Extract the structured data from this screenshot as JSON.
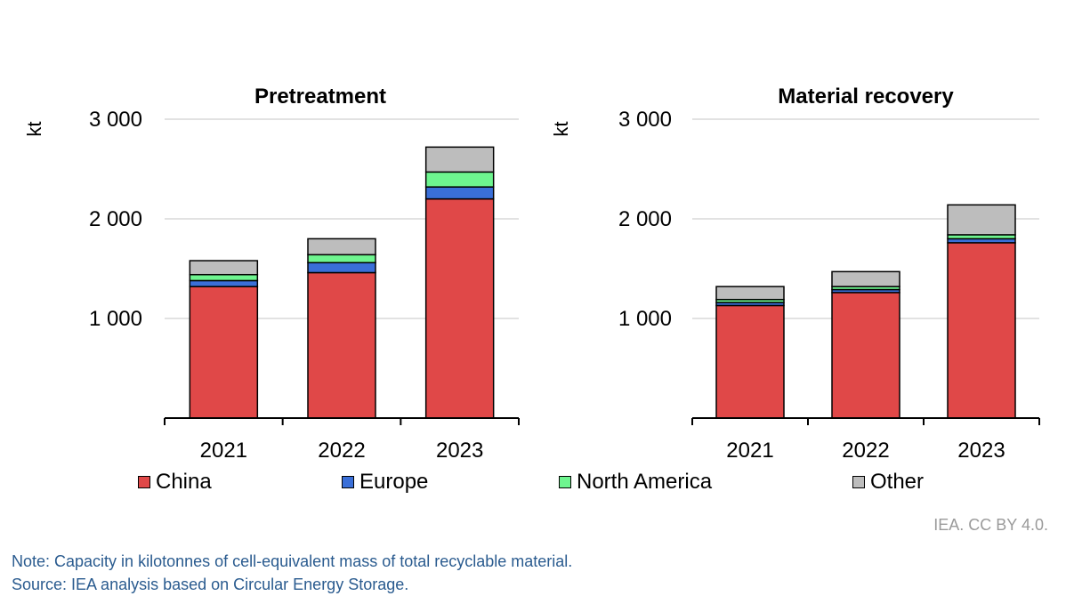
{
  "chart_data": [
    {
      "type": "bar",
      "stacked": true,
      "title": "Pretreatment",
      "ylabel": "kt",
      "ylim": [
        0,
        3000
      ],
      "yticks": [
        1000,
        2000,
        3000
      ],
      "ytick_labels": [
        "1 000",
        "2 000",
        "3 000"
      ],
      "categories": [
        "2021",
        "2022",
        "2023"
      ],
      "grid": true,
      "series": [
        {
          "name": "China",
          "values": [
            1320,
            1460,
            2200
          ]
        },
        {
          "name": "Europe",
          "values": [
            60,
            100,
            120
          ]
        },
        {
          "name": "North America",
          "values": [
            60,
            80,
            150
          ]
        },
        {
          "name": "Other",
          "values": [
            140,
            160,
            250
          ]
        }
      ]
    },
    {
      "type": "bar",
      "stacked": true,
      "title": "Material recovery",
      "ylabel": "kt",
      "ylim": [
        0,
        3000
      ],
      "yticks": [
        1000,
        2000,
        3000
      ],
      "ytick_labels": [
        "1 000",
        "2 000",
        "3 000"
      ],
      "categories": [
        "2021",
        "2022",
        "2023"
      ],
      "grid": true,
      "series": [
        {
          "name": "China",
          "values": [
            1130,
            1260,
            1760
          ]
        },
        {
          "name": "Europe",
          "values": [
            30,
            30,
            40
          ]
        },
        {
          "name": "North America",
          "values": [
            30,
            30,
            40
          ]
        },
        {
          "name": "Other",
          "values": [
            130,
            150,
            300
          ]
        }
      ]
    }
  ],
  "legend": {
    "placement": "bottom",
    "items": [
      {
        "label": "China",
        "color": "#e04848"
      },
      {
        "label": "Europe",
        "color": "#3a6fd8"
      },
      {
        "label": "North America",
        "color": "#6ef58f"
      },
      {
        "label": "Other",
        "color": "#bdbdbd"
      }
    ]
  },
  "colors": {
    "China": "#e04848",
    "Europe": "#3a6fd8",
    "North America": "#6ef58f",
    "Other": "#bdbdbd",
    "grid": "#d9d9d9",
    "note_text": "#2a5b8f"
  },
  "credit": "IEA. CC BY 4.0.",
  "note": "Note: Capacity in kilotonnes of cell-equivalent mass of total recyclable material.",
  "source": "Source: IEA analysis based on Circular Energy Storage."
}
